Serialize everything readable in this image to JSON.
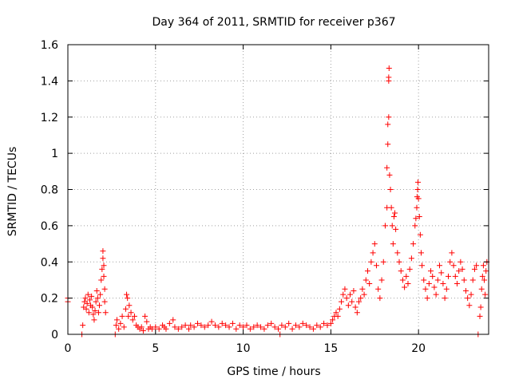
{
  "chart_data": {
    "type": "scatter",
    "title": "Day 364 of 2011, SRMTID for receiver p367",
    "xlabel": "GPS time / hours",
    "ylabel": "SRMTID / TECUs",
    "xlim": [
      0,
      24
    ],
    "ylim": [
      0,
      1.6
    ],
    "xticks": [
      0,
      5,
      10,
      15,
      20
    ],
    "yticks": [
      0,
      0.2,
      0.4,
      0.6,
      0.8,
      1,
      1.2,
      1.4,
      1.6
    ],
    "xtick_labels": [
      "0",
      "5",
      "10",
      "15",
      "20"
    ],
    "ytick_labels": [
      "0",
      "0.2",
      "0.4",
      "0.6",
      "0.8",
      "1",
      "1.2",
      "1.4",
      "1.6"
    ],
    "grid": true,
    "marker": "plus",
    "series": [
      {
        "name": "SRMTID",
        "color": "#ff0000",
        "points": [
          [
            0.0,
            0.2
          ],
          [
            0.0,
            0.18
          ],
          [
            0.8,
            0.0
          ],
          [
            0.85,
            0.05
          ],
          [
            0.9,
            0.15
          ],
          [
            0.95,
            0.18
          ],
          [
            1.0,
            0.2
          ],
          [
            1.05,
            0.14
          ],
          [
            1.1,
            0.17
          ],
          [
            1.15,
            0.22
          ],
          [
            1.2,
            0.12
          ],
          [
            1.25,
            0.19
          ],
          [
            1.3,
            0.16
          ],
          [
            1.35,
            0.21
          ],
          [
            1.4,
            0.15
          ],
          [
            1.45,
            0.11
          ],
          [
            1.5,
            0.08
          ],
          [
            1.55,
            0.13
          ],
          [
            1.6,
            0.18
          ],
          [
            1.65,
            0.24
          ],
          [
            1.7,
            0.2
          ],
          [
            1.75,
            0.12
          ],
          [
            1.8,
            0.16
          ],
          [
            1.85,
            0.22
          ],
          [
            1.9,
            0.3
          ],
          [
            1.95,
            0.36
          ],
          [
            2.0,
            0.42
          ],
          [
            2.0,
            0.46
          ],
          [
            2.05,
            0.38
          ],
          [
            2.05,
            0.32
          ],
          [
            2.1,
            0.25
          ],
          [
            2.1,
            0.18
          ],
          [
            2.15,
            0.12
          ],
          [
            2.7,
            0.0
          ],
          [
            2.75,
            0.05
          ],
          [
            2.8,
            0.08
          ],
          [
            2.9,
            0.03
          ],
          [
            3.0,
            0.06
          ],
          [
            3.1,
            0.1
          ],
          [
            3.2,
            0.04
          ],
          [
            3.3,
            0.14
          ],
          [
            3.35,
            0.22
          ],
          [
            3.4,
            0.2
          ],
          [
            3.45,
            0.1
          ],
          [
            3.5,
            0.16
          ],
          [
            3.6,
            0.12
          ],
          [
            3.7,
            0.08
          ],
          [
            3.8,
            0.1
          ],
          [
            3.9,
            0.05
          ],
          [
            4.0,
            0.04
          ],
          [
            4.1,
            0.03
          ],
          [
            4.2,
            0.04
          ],
          [
            4.3,
            0.02
          ],
          [
            4.4,
            0.1
          ],
          [
            4.5,
            0.07
          ],
          [
            4.6,
            0.03
          ],
          [
            4.7,
            0.04
          ],
          [
            4.8,
            0.03
          ],
          [
            5.0,
            0.04
          ],
          [
            5.2,
            0.03
          ],
          [
            5.4,
            0.05
          ],
          [
            5.5,
            0.04
          ],
          [
            5.6,
            0.03
          ],
          [
            5.8,
            0.06
          ],
          [
            6.0,
            0.08
          ],
          [
            6.1,
            0.04
          ],
          [
            6.3,
            0.03
          ],
          [
            6.5,
            0.04
          ],
          [
            6.7,
            0.05
          ],
          [
            6.9,
            0.03
          ],
          [
            7.0,
            0.05
          ],
          [
            7.2,
            0.04
          ],
          [
            7.4,
            0.06
          ],
          [
            7.6,
            0.05
          ],
          [
            7.8,
            0.04
          ],
          [
            8.0,
            0.05
          ],
          [
            8.2,
            0.07
          ],
          [
            8.4,
            0.05
          ],
          [
            8.6,
            0.04
          ],
          [
            8.8,
            0.06
          ],
          [
            9.0,
            0.05
          ],
          [
            9.2,
            0.04
          ],
          [
            9.4,
            0.06
          ],
          [
            9.6,
            0.03
          ],
          [
            9.8,
            0.05
          ],
          [
            10.0,
            0.04
          ],
          [
            10.2,
            0.05
          ],
          [
            10.4,
            0.03
          ],
          [
            10.6,
            0.04
          ],
          [
            10.8,
            0.05
          ],
          [
            11.0,
            0.04
          ],
          [
            11.2,
            0.03
          ],
          [
            11.4,
            0.05
          ],
          [
            11.6,
            0.06
          ],
          [
            11.8,
            0.04
          ],
          [
            12.0,
            0.03
          ],
          [
            12.1,
            0.0
          ],
          [
            12.2,
            0.05
          ],
          [
            12.4,
            0.04
          ],
          [
            12.6,
            0.06
          ],
          [
            12.8,
            0.03
          ],
          [
            13.0,
            0.05
          ],
          [
            13.2,
            0.04
          ],
          [
            13.4,
            0.06
          ],
          [
            13.6,
            0.05
          ],
          [
            13.8,
            0.04
          ],
          [
            14.0,
            0.03
          ],
          [
            14.2,
            0.05
          ],
          [
            14.4,
            0.04
          ],
          [
            14.6,
            0.06
          ],
          [
            14.8,
            0.05
          ],
          [
            15.0,
            0.06
          ],
          [
            15.1,
            0.08
          ],
          [
            15.2,
            0.1
          ],
          [
            15.3,
            0.12
          ],
          [
            15.4,
            0.1
          ],
          [
            15.5,
            0.14
          ],
          [
            15.6,
            0.18
          ],
          [
            15.7,
            0.22
          ],
          [
            15.8,
            0.25
          ],
          [
            15.9,
            0.2
          ],
          [
            16.0,
            0.16
          ],
          [
            16.1,
            0.22
          ],
          [
            16.2,
            0.18
          ],
          [
            16.3,
            0.24
          ],
          [
            16.4,
            0.15
          ],
          [
            16.5,
            0.12
          ],
          [
            16.6,
            0.18
          ],
          [
            16.7,
            0.2
          ],
          [
            16.8,
            0.25
          ],
          [
            16.9,
            0.22
          ],
          [
            17.0,
            0.3
          ],
          [
            17.1,
            0.35
          ],
          [
            17.2,
            0.28
          ],
          [
            17.3,
            0.4
          ],
          [
            17.4,
            0.45
          ],
          [
            17.5,
            0.5
          ],
          [
            17.6,
            0.38
          ],
          [
            17.7,
            0.25
          ],
          [
            17.8,
            0.2
          ],
          [
            17.9,
            0.3
          ],
          [
            18.0,
            0.4
          ],
          [
            18.1,
            0.6
          ],
          [
            18.2,
            0.7
          ],
          [
            18.2,
            0.92
          ],
          [
            18.25,
            1.05
          ],
          [
            18.25,
            1.16
          ],
          [
            18.3,
            1.2
          ],
          [
            18.3,
            1.4
          ],
          [
            18.3,
            1.42
          ],
          [
            18.32,
            1.47
          ],
          [
            18.35,
            0.88
          ],
          [
            18.4,
            0.8
          ],
          [
            18.45,
            0.7
          ],
          [
            18.5,
            0.6
          ],
          [
            18.55,
            0.5
          ],
          [
            18.6,
            0.65
          ],
          [
            18.65,
            0.67
          ],
          [
            18.7,
            0.58
          ],
          [
            18.8,
            0.45
          ],
          [
            18.9,
            0.4
          ],
          [
            19.0,
            0.35
          ],
          [
            19.1,
            0.3
          ],
          [
            19.2,
            0.26
          ],
          [
            19.3,
            0.32
          ],
          [
            19.4,
            0.28
          ],
          [
            19.5,
            0.36
          ],
          [
            19.6,
            0.42
          ],
          [
            19.7,
            0.5
          ],
          [
            19.8,
            0.6
          ],
          [
            19.85,
            0.64
          ],
          [
            19.9,
            0.7
          ],
          [
            19.92,
            0.76
          ],
          [
            19.95,
            0.8
          ],
          [
            19.97,
            0.84
          ],
          [
            20.0,
            0.75
          ],
          [
            20.05,
            0.65
          ],
          [
            20.1,
            0.55
          ],
          [
            20.15,
            0.45
          ],
          [
            20.2,
            0.38
          ],
          [
            20.3,
            0.3
          ],
          [
            20.4,
            0.25
          ],
          [
            20.5,
            0.2
          ],
          [
            20.6,
            0.28
          ],
          [
            20.7,
            0.35
          ],
          [
            20.8,
            0.32
          ],
          [
            20.9,
            0.26
          ],
          [
            21.0,
            0.22
          ],
          [
            21.1,
            0.3
          ],
          [
            21.2,
            0.38
          ],
          [
            21.3,
            0.34
          ],
          [
            21.4,
            0.28
          ],
          [
            21.5,
            0.2
          ],
          [
            21.6,
            0.25
          ],
          [
            21.7,
            0.32
          ],
          [
            21.8,
            0.4
          ],
          [
            21.9,
            0.45
          ],
          [
            22.0,
            0.38
          ],
          [
            22.1,
            0.32
          ],
          [
            22.2,
            0.28
          ],
          [
            22.3,
            0.35
          ],
          [
            22.4,
            0.4
          ],
          [
            22.5,
            0.36
          ],
          [
            22.6,
            0.3
          ],
          [
            22.7,
            0.24
          ],
          [
            22.8,
            0.2
          ],
          [
            22.9,
            0.16
          ],
          [
            23.0,
            0.22
          ],
          [
            23.1,
            0.3
          ],
          [
            23.2,
            0.36
          ],
          [
            23.3,
            0.38
          ],
          [
            23.4,
            0.0
          ],
          [
            23.5,
            0.1
          ],
          [
            23.55,
            0.15
          ],
          [
            23.6,
            0.25
          ],
          [
            23.65,
            0.32
          ],
          [
            23.7,
            0.38
          ],
          [
            23.75,
            0.3
          ],
          [
            23.8,
            0.22
          ],
          [
            23.85,
            0.35
          ],
          [
            23.9,
            0.4
          ]
        ]
      }
    ]
  }
}
